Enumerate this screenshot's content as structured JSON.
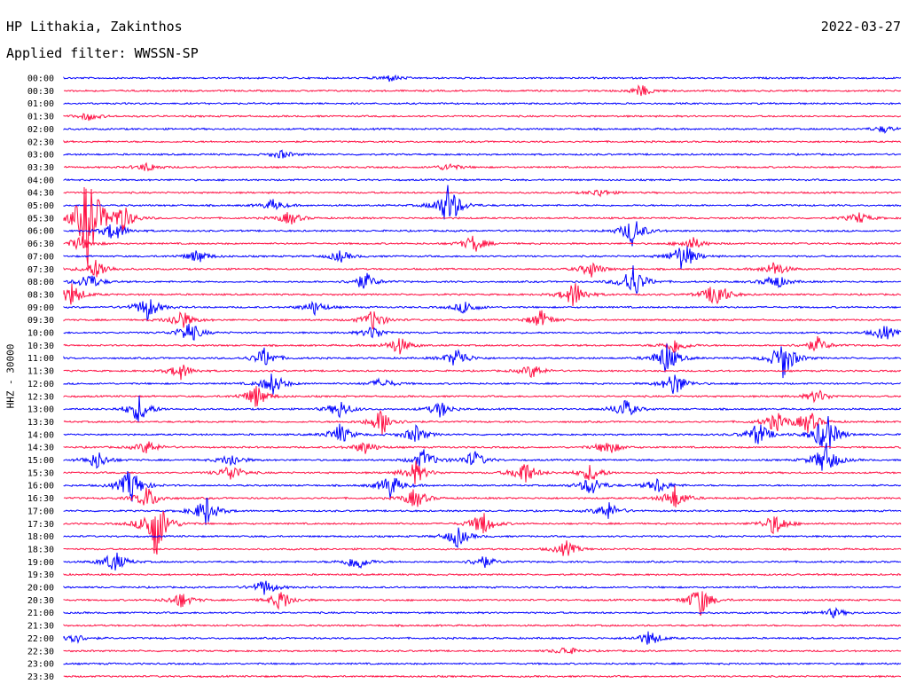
{
  "header": {
    "station": "HP Lithakia, Zakinthos",
    "date": "2022-03-27",
    "filter": "Applied filter: WWSSN-SP"
  },
  "chart_data": {
    "type": "line",
    "title": "HP Lithakia, Zakinthos",
    "subtitle": "Applied filter: WWSSN-SP",
    "ylabel": "HHZ - 30000",
    "xlabel": "",
    "grid": false,
    "colors": [
      "#0000ff",
      "#ff1144"
    ],
    "row_labels": [
      "00:00",
      "00:30",
      "01:00",
      "01:30",
      "02:00",
      "02:30",
      "03:00",
      "03:30",
      "04:00",
      "04:30",
      "05:00",
      "05:30",
      "06:00",
      "06:30",
      "07:00",
      "07:30",
      "08:00",
      "08:30",
      "09:00",
      "09:30",
      "10:00",
      "10:30",
      "11:00",
      "11:30",
      "12:00",
      "12:30",
      "13:00",
      "13:30",
      "14:00",
      "14:30",
      "15:00",
      "15:30",
      "16:00",
      "16:30",
      "17:00",
      "17:30",
      "18:00",
      "18:30",
      "19:00",
      "19:30",
      "20:00",
      "20:30",
      "21:00",
      "21:30",
      "22:00",
      "22:30",
      "23:00",
      "23:30"
    ],
    "events": [
      {
        "row": 0,
        "at": 0.39,
        "amp": 0.3
      },
      {
        "row": 1,
        "at": 0.69,
        "amp": 0.5
      },
      {
        "row": 3,
        "at": 0.03,
        "amp": 0.35
      },
      {
        "row": 4,
        "at": 0.98,
        "amp": 0.3
      },
      {
        "row": 6,
        "at": 0.26,
        "amp": 0.35
      },
      {
        "row": 7,
        "at": 0.1,
        "amp": 0.4
      },
      {
        "row": 7,
        "at": 0.46,
        "amp": 0.35
      },
      {
        "row": 9,
        "at": 0.64,
        "amp": 0.35
      },
      {
        "row": 10,
        "at": 0.46,
        "amp": 2.0
      },
      {
        "row": 10,
        "at": 0.25,
        "amp": 0.5
      },
      {
        "row": 11,
        "at": 0.03,
        "amp": 4.5
      },
      {
        "row": 11,
        "at": 0.07,
        "amp": 1.2
      },
      {
        "row": 11,
        "at": 0.27,
        "amp": 0.6
      },
      {
        "row": 11,
        "at": 0.95,
        "amp": 0.5
      },
      {
        "row": 12,
        "at": 0.68,
        "amp": 1.3
      },
      {
        "row": 12,
        "at": 0.06,
        "amp": 0.9
      },
      {
        "row": 13,
        "at": 0.49,
        "amp": 0.8
      },
      {
        "row": 13,
        "at": 0.02,
        "amp": 0.7
      },
      {
        "row": 13,
        "at": 0.75,
        "amp": 0.6
      },
      {
        "row": 14,
        "at": 0.74,
        "amp": 1.4
      },
      {
        "row": 14,
        "at": 0.16,
        "amp": 0.6
      },
      {
        "row": 14,
        "at": 0.33,
        "amp": 0.5
      },
      {
        "row": 15,
        "at": 0.04,
        "amp": 0.9
      },
      {
        "row": 15,
        "at": 0.63,
        "amp": 0.7
      },
      {
        "row": 15,
        "at": 0.85,
        "amp": 0.7
      },
      {
        "row": 16,
        "at": 0.68,
        "amp": 1.6
      },
      {
        "row": 16,
        "at": 0.36,
        "amp": 0.8
      },
      {
        "row": 16,
        "at": 0.85,
        "amp": 0.7
      },
      {
        "row": 16,
        "at": 0.03,
        "amp": 0.8
      },
      {
        "row": 17,
        "at": 0.61,
        "amp": 1.2
      },
      {
        "row": 17,
        "at": 0.78,
        "amp": 1.3
      },
      {
        "row": 17,
        "at": 0.01,
        "amp": 1.0
      },
      {
        "row": 18,
        "at": 0.1,
        "amp": 1.1
      },
      {
        "row": 18,
        "at": 0.3,
        "amp": 0.6
      },
      {
        "row": 18,
        "at": 0.48,
        "amp": 0.6
      },
      {
        "row": 19,
        "at": 0.37,
        "amp": 0.9
      },
      {
        "row": 19,
        "at": 0.57,
        "amp": 0.8
      },
      {
        "row": 19,
        "at": 0.14,
        "amp": 0.9
      },
      {
        "row": 20,
        "at": 0.15,
        "amp": 1.0
      },
      {
        "row": 20,
        "at": 0.37,
        "amp": 0.6
      },
      {
        "row": 20,
        "at": 0.98,
        "amp": 0.7
      },
      {
        "row": 21,
        "at": 0.4,
        "amp": 0.8
      },
      {
        "row": 21,
        "at": 0.9,
        "amp": 0.7
      },
      {
        "row": 21,
        "at": 0.73,
        "amp": 0.7
      },
      {
        "row": 22,
        "at": 0.24,
        "amp": 0.9
      },
      {
        "row": 22,
        "at": 0.47,
        "amp": 0.9
      },
      {
        "row": 22,
        "at": 0.72,
        "amp": 1.4
      },
      {
        "row": 22,
        "at": 0.86,
        "amp": 1.8
      },
      {
        "row": 23,
        "at": 0.14,
        "amp": 0.7
      },
      {
        "row": 23,
        "at": 0.56,
        "amp": 0.6
      },
      {
        "row": 24,
        "at": 0.25,
        "amp": 1.0
      },
      {
        "row": 24,
        "at": 0.73,
        "amp": 1.1
      },
      {
        "row": 24,
        "at": 0.38,
        "amp": 0.5
      },
      {
        "row": 25,
        "at": 0.23,
        "amp": 1.0
      },
      {
        "row": 25,
        "at": 0.9,
        "amp": 0.6
      },
      {
        "row": 26,
        "at": 0.09,
        "amp": 1.2
      },
      {
        "row": 26,
        "at": 0.33,
        "amp": 0.8
      },
      {
        "row": 26,
        "at": 0.45,
        "amp": 0.7
      },
      {
        "row": 26,
        "at": 0.67,
        "amp": 0.9
      },
      {
        "row": 27,
        "at": 0.38,
        "amp": 1.2
      },
      {
        "row": 27,
        "at": 0.85,
        "amp": 0.9
      },
      {
        "row": 27,
        "at": 0.89,
        "amp": 1.0
      },
      {
        "row": 28,
        "at": 0.33,
        "amp": 0.9
      },
      {
        "row": 28,
        "at": 0.42,
        "amp": 0.8
      },
      {
        "row": 28,
        "at": 0.83,
        "amp": 1.1
      },
      {
        "row": 28,
        "at": 0.91,
        "amp": 2.0
      },
      {
        "row": 29,
        "at": 0.1,
        "amp": 0.6
      },
      {
        "row": 29,
        "at": 0.36,
        "amp": 0.6
      },
      {
        "row": 29,
        "at": 0.65,
        "amp": 0.7
      },
      {
        "row": 30,
        "at": 0.04,
        "amp": 0.8
      },
      {
        "row": 30,
        "at": 0.2,
        "amp": 0.6
      },
      {
        "row": 30,
        "at": 0.43,
        "amp": 0.9
      },
      {
        "row": 30,
        "at": 0.49,
        "amp": 0.8
      },
      {
        "row": 30,
        "at": 0.91,
        "amp": 1.5
      },
      {
        "row": 31,
        "at": 0.2,
        "amp": 0.8
      },
      {
        "row": 31,
        "at": 0.42,
        "amp": 1.0
      },
      {
        "row": 31,
        "at": 0.55,
        "amp": 1.1
      },
      {
        "row": 31,
        "at": 0.63,
        "amp": 0.8
      },
      {
        "row": 32,
        "at": 0.08,
        "amp": 1.6
      },
      {
        "row": 32,
        "at": 0.39,
        "amp": 1.1
      },
      {
        "row": 32,
        "at": 0.63,
        "amp": 0.9
      },
      {
        "row": 32,
        "at": 0.71,
        "amp": 0.7
      },
      {
        "row": 33,
        "at": 0.1,
        "amp": 1.0
      },
      {
        "row": 33,
        "at": 0.42,
        "amp": 0.9
      },
      {
        "row": 33,
        "at": 0.73,
        "amp": 1.0
      },
      {
        "row": 34,
        "at": 0.17,
        "amp": 1.3
      },
      {
        "row": 34,
        "at": 0.65,
        "amp": 0.8
      },
      {
        "row": 35,
        "at": 0.11,
        "amp": 3.0
      },
      {
        "row": 35,
        "at": 0.5,
        "amp": 1.1
      },
      {
        "row": 35,
        "at": 0.85,
        "amp": 1.0
      },
      {
        "row": 36,
        "at": 0.47,
        "amp": 0.9
      },
      {
        "row": 37,
        "at": 0.6,
        "amp": 0.7
      },
      {
        "row": 38,
        "at": 0.06,
        "amp": 1.0
      },
      {
        "row": 38,
        "at": 0.35,
        "amp": 0.8
      },
      {
        "row": 38,
        "at": 0.5,
        "amp": 0.6
      },
      {
        "row": 40,
        "at": 0.24,
        "amp": 0.7
      },
      {
        "row": 41,
        "at": 0.14,
        "amp": 0.7
      },
      {
        "row": 41,
        "at": 0.26,
        "amp": 0.9
      },
      {
        "row": 41,
        "at": 0.76,
        "amp": 1.4
      },
      {
        "row": 42,
        "at": 0.92,
        "amp": 0.4
      },
      {
        "row": 44,
        "at": 0.01,
        "amp": 0.6
      },
      {
        "row": 44,
        "at": 0.7,
        "amp": 0.7
      },
      {
        "row": 45,
        "at": 0.6,
        "amp": 0.4
      }
    ]
  }
}
